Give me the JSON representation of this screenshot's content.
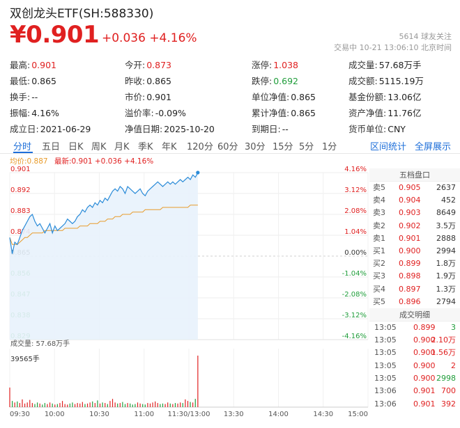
{
  "header": {
    "title": "双创龙头ETF(SH:588330)",
    "price": "¥0.901",
    "change": "+0.036  +4.16%",
    "follow": "5614 球友关注",
    "status": "交易中 10-21 13:06:10 北京时间"
  },
  "stats": [
    [
      {
        "label": "最高:",
        "value": "0.901",
        "color": "red"
      },
      {
        "label": "今开:",
        "value": "0.873",
        "color": "red"
      },
      {
        "label": "涨停:",
        "value": "1.038",
        "color": "red"
      },
      {
        "label": "成交量:",
        "value": "57.68万手"
      }
    ],
    [
      {
        "label": "最低:",
        "value": "0.865"
      },
      {
        "label": "昨收:",
        "value": "0.865"
      },
      {
        "label": "跌停:",
        "value": "0.692",
        "color": "green"
      },
      {
        "label": "成交额:",
        "value": "5115.19万"
      }
    ],
    [
      {
        "label": "换手:",
        "value": "--"
      },
      {
        "label": "市价:",
        "value": "0.901"
      },
      {
        "label": "单位净值:",
        "value": "0.865"
      },
      {
        "label": "基金份额:",
        "value": "13.06亿"
      }
    ],
    [
      {
        "label": "振幅:",
        "value": "4.16%"
      },
      {
        "label": "溢价率:",
        "value": "-0.09%"
      },
      {
        "label": "累计净值:",
        "value": "0.865"
      },
      {
        "label": "资产净值:",
        "value": "11.76亿"
      }
    ],
    [
      {
        "label": "成立日:",
        "value": "2021-06-29"
      },
      {
        "label": "净值日期:",
        "value": "2025-10-20"
      },
      {
        "label": "到期日:",
        "value": "--"
      },
      {
        "label": "货币单位:",
        "value": "CNY"
      }
    ]
  ],
  "tabs": [
    "分时",
    "五日",
    "日K",
    "周K",
    "月K",
    "季K",
    "年K",
    "120分",
    "60分",
    "30分",
    "15分",
    "5分",
    "1分"
  ],
  "active_tab": "分时",
  "links": {
    "interval_stats": "区间统计",
    "fullscreen": "全屏展示"
  },
  "legend": {
    "avg": "均价:0.887",
    "last": "最新:0.901 +0.036 +4.16%"
  },
  "orderbook": {
    "title": "五档盘口",
    "asks": [
      {
        "label": "卖5",
        "price": "0.905",
        "vol": "2637"
      },
      {
        "label": "卖4",
        "price": "0.904",
        "vol": "452"
      },
      {
        "label": "卖3",
        "price": "0.903",
        "vol": "8649"
      },
      {
        "label": "卖2",
        "price": "0.902",
        "vol": "3.5万"
      },
      {
        "label": "卖1",
        "price": "0.901",
        "vol": "2888"
      }
    ],
    "bids": [
      {
        "label": "买1",
        "price": "0.900",
        "vol": "2994"
      },
      {
        "label": "买2",
        "price": "0.899",
        "vol": "1.8万"
      },
      {
        "label": "买3",
        "price": "0.898",
        "vol": "1.9万"
      },
      {
        "label": "买4",
        "price": "0.897",
        "vol": "1.3万"
      },
      {
        "label": "买5",
        "price": "0.896",
        "vol": "2794"
      }
    ],
    "trades_title": "成交明细",
    "trades": [
      {
        "time": "13:05",
        "price": "0.899",
        "vol": "3",
        "side": "sell"
      },
      {
        "time": "13:05",
        "price": "0.900",
        "vol": "2.10万",
        "side": "buy"
      },
      {
        "time": "13:05",
        "price": "0.900",
        "vol": "1.56万",
        "side": "buy"
      },
      {
        "time": "13:05",
        "price": "0.900",
        "vol": "2",
        "side": "buy"
      },
      {
        "time": "13:05",
        "price": "0.900",
        "vol": "2998",
        "side": "sell"
      },
      {
        "time": "13:06",
        "price": "0.901",
        "vol": "700",
        "side": "buy"
      },
      {
        "time": "13:06",
        "price": "0.901",
        "vol": "392",
        "side": "buy"
      }
    ]
  },
  "chart_data": {
    "type": "line",
    "price_ticks": [
      "0.901",
      "0.892",
      "0.883",
      "0.874",
      "0.865",
      "0.856",
      "0.847",
      "0.838",
      "0.829"
    ],
    "pct_ticks": [
      "4.16%",
      "3.12%",
      "2.08%",
      "1.04%",
      "0.00%",
      "-1.04%",
      "-2.08%",
      "-3.12%",
      "-4.16%"
    ],
    "ylim": [
      0.829,
      0.901
    ],
    "prev_close": 0.865,
    "time_ticks": [
      "09:30",
      "10:00",
      "10:30",
      "11:00",
      "11:30/13:00",
      "13:30",
      "14:00",
      "14:30",
      "15:00"
    ],
    "volume_label": "成交量: 57.68万手",
    "volume_max_label": "39565手",
    "series": [
      {
        "name": "最新",
        "color": "#2a8bd8",
        "values": [
          0.873,
          0.866,
          0.871,
          0.87,
          0.873,
          0.876,
          0.878,
          0.88,
          0.882,
          0.883,
          0.88,
          0.878,
          0.879,
          0.877,
          0.875,
          0.877,
          0.879,
          0.875,
          0.878,
          0.876,
          0.877,
          0.878,
          0.879,
          0.881,
          0.88,
          0.879,
          0.88,
          0.882,
          0.883,
          0.885,
          0.884,
          0.886,
          0.887,
          0.886,
          0.888,
          0.887,
          0.889,
          0.888,
          0.89,
          0.889,
          0.891,
          0.893,
          0.894,
          0.893,
          0.895,
          0.894,
          0.892,
          0.895,
          0.894,
          0.893,
          0.892,
          0.893,
          0.894,
          0.892,
          0.891,
          0.893,
          0.894,
          0.895,
          0.896,
          0.897,
          0.896,
          0.895,
          0.896,
          0.897,
          0.896,
          0.897,
          0.896,
          0.897,
          0.898,
          0.897,
          0.898,
          0.899,
          0.898,
          0.9,
          0.899,
          0.901
        ]
      },
      {
        "name": "均价",
        "color": "#e89b2a",
        "values": [
          0.873,
          0.87,
          0.87,
          0.87,
          0.871,
          0.872,
          0.873,
          0.873,
          0.874,
          0.875,
          0.875,
          0.875,
          0.875,
          0.875,
          0.876,
          0.876,
          0.876,
          0.876,
          0.876,
          0.876,
          0.876,
          0.876,
          0.877,
          0.877,
          0.877,
          0.877,
          0.877,
          0.877,
          0.878,
          0.878,
          0.878,
          0.878,
          0.879,
          0.879,
          0.879,
          0.879,
          0.88,
          0.88,
          0.88,
          0.881,
          0.881,
          0.881,
          0.882,
          0.882,
          0.882,
          0.883,
          0.883,
          0.883,
          0.883,
          0.884,
          0.884,
          0.884,
          0.884,
          0.884,
          0.885,
          0.885,
          0.885,
          0.885,
          0.885,
          0.885,
          0.885,
          0.886,
          0.886,
          0.886,
          0.886,
          0.886,
          0.886,
          0.886,
          0.886,
          0.886,
          0.886,
          0.886,
          0.887,
          0.887,
          0.887,
          0.887
        ]
      }
    ],
    "volume": [
      3.8,
      1.2,
      0.9,
      1.1,
      0.8,
      1.5,
      0.7,
      0.9,
      1.4,
      0.8,
      0.6,
      0.9,
      0.7,
      0.5,
      0.8,
      0.6,
      0.9,
      0.7,
      0.5,
      0.6,
      0.8,
      1.2,
      0.6,
      0.5,
      0.7,
      0.9,
      0.6,
      0.8,
      0.7,
      1.0,
      0.6,
      0.7,
      0.9,
      1.1,
      0.8,
      1.3,
      0.7,
      0.9,
      0.8,
      0.6,
      1.2,
      1.6,
      0.9,
      0.7,
      0.8,
      1.0,
      0.6,
      0.8,
      0.7,
      0.5,
      0.6,
      0.9,
      0.7,
      0.6,
      0.5,
      0.8,
      0.7,
      0.9,
      1.1,
      0.8,
      0.6,
      0.7,
      0.6,
      0.9,
      0.7,
      0.6,
      0.8,
      0.7,
      0.9,
      0.8,
      1.5,
      1.2,
      1.0,
      0.9,
      1.6,
      10.0
    ]
  }
}
